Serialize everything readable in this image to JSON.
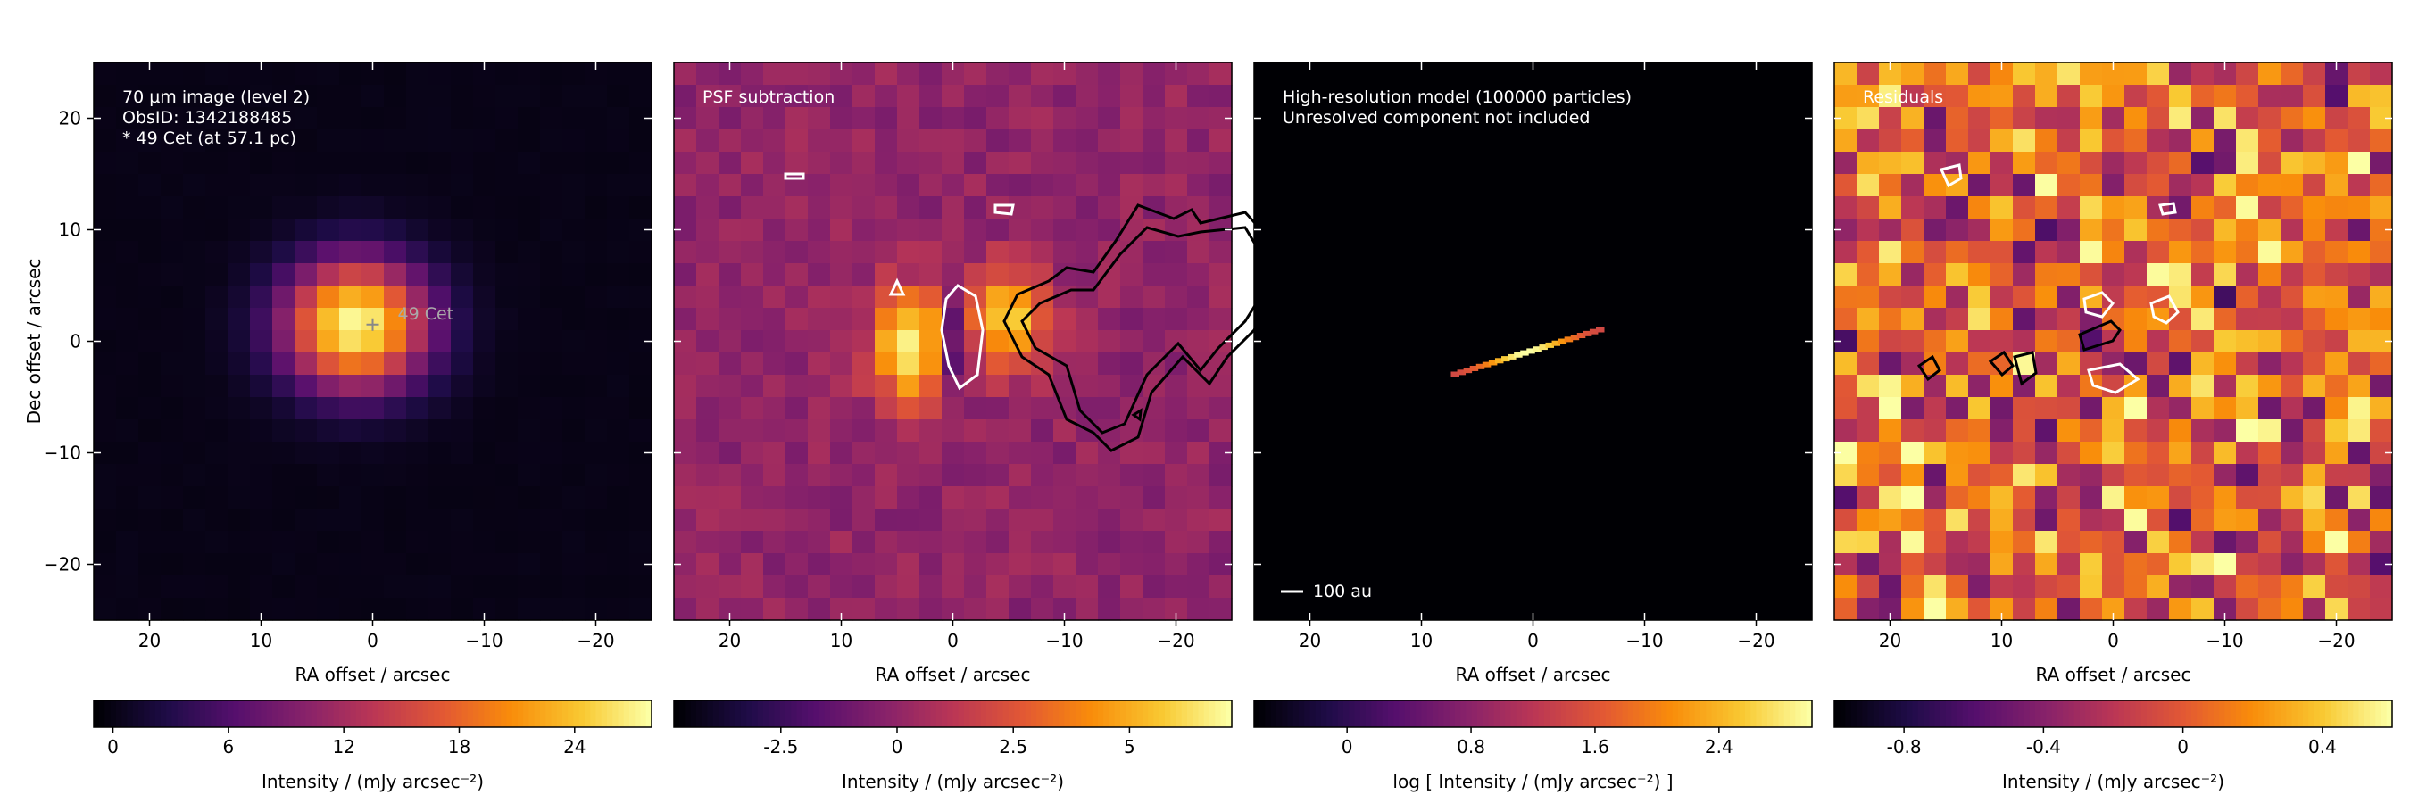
{
  "figure": {
    "panels": [
      {
        "id": "observed",
        "annotation_lines": [
          "70 µm image (level 2)",
          "ObsID: 1342188485",
          "* 49 Cet (at 57.1 pc)"
        ],
        "marker_label": "49 Cet",
        "xlabel": "RA offset / arcsec",
        "ylabel": "Dec offset / arcsec",
        "colorbar_label": "Intensity / (mJy arcsec⁻²)",
        "colorbar_ticks": [
          "0",
          "6",
          "12",
          "18",
          "24"
        ]
      },
      {
        "id": "psf-subtraction",
        "annotation_lines": [
          "PSF subtraction"
        ],
        "xlabel": "RA offset / arcsec",
        "colorbar_label": "Intensity / (mJy arcsec⁻²)",
        "colorbar_ticks": [
          "-2.5",
          "0",
          "2.5",
          "5"
        ]
      },
      {
        "id": "model",
        "annotation_lines": [
          "High-resolution model (100000 particles)",
          "Unresolved component not included"
        ],
        "scalebar_label": "100 au",
        "xlabel": "RA offset / arcsec",
        "colorbar_label": "log [ Intensity / (mJy arcsec⁻²) ]",
        "colorbar_ticks": [
          "0",
          "0.8",
          "1.6",
          "2.4"
        ]
      },
      {
        "id": "residuals",
        "annotation_lines": [
          "Residuals"
        ],
        "xlabel": "RA offset / arcsec",
        "colorbar_label": "Intensity / (mJy arcsec⁻²)",
        "colorbar_ticks": [
          "-0.8",
          "-0.4",
          "0",
          "0.4"
        ]
      }
    ],
    "x_tick_labels": [
      "20",
      "10",
      "0",
      "−10",
      "−20"
    ],
    "y_tick_labels": [
      "20",
      "10",
      "0",
      "−10",
      "−20"
    ],
    "colormap": "inferno",
    "contour_colors": {
      "positive": "#000000",
      "negative": "#ffffff"
    }
  },
  "chart_data": [
    {
      "type": "heatmap",
      "xlabel": "RA offset / arcsec",
      "ylabel": "Dec offset / arcsec",
      "xlim": [
        25,
        -25
      ],
      "ylim": [
        -25,
        25
      ],
      "colorbar_range": [
        -1,
        28
      ],
      "sources": [
        {
          "ra": 1.5,
          "dec": 1.5,
          "peak": 28,
          "sigma": 4.5
        }
      ],
      "marker": {
        "ra": 0,
        "dec": 1.5
      }
    },
    {
      "type": "heatmap",
      "xlabel": "RA offset / arcsec",
      "ylabel": "",
      "xlim": [
        25,
        -25
      ],
      "ylim": [
        -25,
        25
      ],
      "colorbar_range": [
        -4.8,
        7.2
      ],
      "features": [
        {
          "ra": 3.5,
          "dec": -0.5,
          "peak": 7.0
        },
        {
          "ra": -5,
          "dec": 2,
          "peak": 6.2
        },
        {
          "ra": 0,
          "dec": 0,
          "peak": -4.8
        }
      ]
    },
    {
      "type": "heatmap",
      "xlabel": "RA offset / arcsec",
      "ylabel": "",
      "xlim": [
        25,
        -25
      ],
      "ylim": [
        -25,
        25
      ],
      "colorbar_range": [
        -0.6,
        3.0
      ],
      "disk": {
        "ra_start": 7,
        "dec_start": -3,
        "ra_end": -6,
        "dec_end": 1
      }
    },
    {
      "type": "heatmap",
      "xlabel": "RA offset / arcsec",
      "ylabel": "",
      "xlim": [
        25,
        -25
      ],
      "ylim": [
        -25,
        25
      ],
      "colorbar_range": [
        -1.0,
        0.6
      ]
    }
  ]
}
